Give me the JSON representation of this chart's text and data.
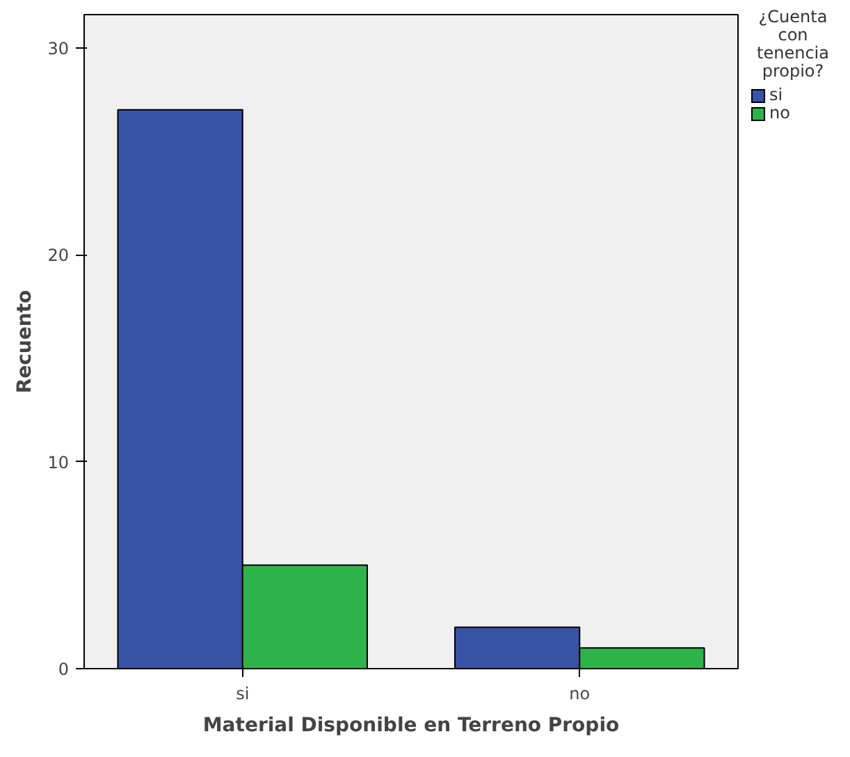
{
  "chart_data": {
    "type": "bar",
    "xlabel": "Material Disponible en Terreno Propio",
    "ylabel": "Recuento",
    "legend_title": "¿Cuenta con tenencia propio?",
    "categories": [
      "si",
      "no"
    ],
    "series": [
      {
        "name": "si",
        "color": "#3953a4",
        "values": [
          27,
          2
        ]
      },
      {
        "name": "no",
        "color": "#2db34a",
        "values": [
          5,
          1
        ]
      }
    ],
    "ylim": [
      0,
      31.6
    ],
    "yticks": [
      0,
      10,
      20,
      30
    ],
    "grid": false,
    "legend": "right"
  }
}
